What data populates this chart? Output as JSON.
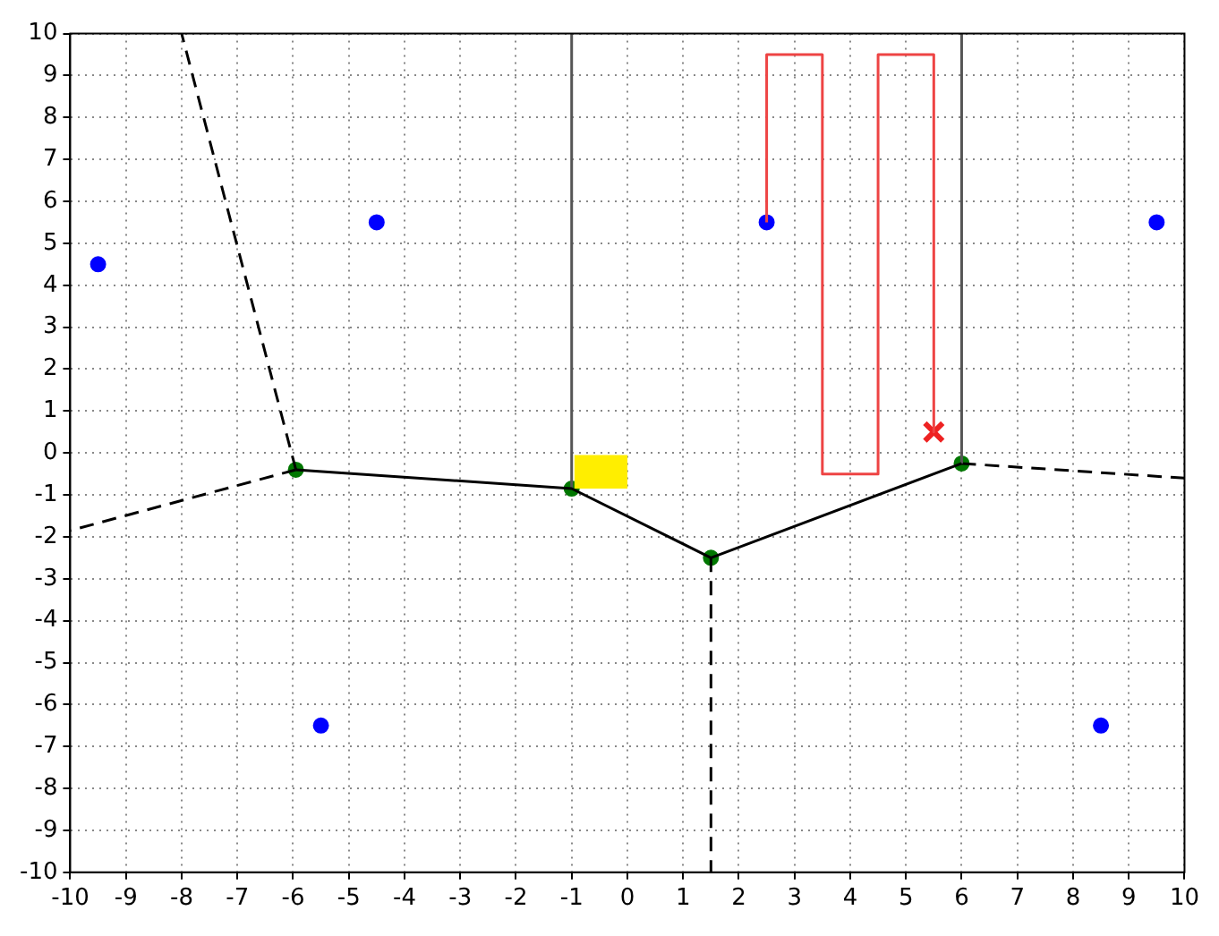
{
  "chart_data": {
    "type": "scatter",
    "xlim": [
      -10,
      10
    ],
    "ylim": [
      -10,
      10
    ],
    "xticks": [
      -10,
      -9,
      -8,
      -7,
      -6,
      -5,
      -4,
      -3,
      -2,
      -1,
      0,
      1,
      2,
      3,
      4,
      5,
      6,
      7,
      8,
      9,
      10
    ],
    "yticks": [
      -10,
      -9,
      -8,
      -7,
      -6,
      -5,
      -4,
      -3,
      -2,
      -1,
      0,
      1,
      2,
      3,
      4,
      5,
      6,
      7,
      8,
      9,
      10
    ],
    "grid": true,
    "legend": false,
    "series": [
      {
        "type": "area",
        "color": "#ffee00",
        "x": [
          -0.95,
          0,
          0,
          -0.95,
          -0.95
        ],
        "values": [
          -0.85,
          -0.85,
          -0.05,
          -0.05,
          -0.85
        ],
        "marker": "none"
      },
      {
        "type": "line",
        "color": "#000000",
        "x": [
          -5.95,
          -1,
          1.5,
          6
        ],
        "values": [
          -0.4,
          -0.85,
          -2.5,
          -0.25
        ],
        "marker": "none",
        "line_style": "solid"
      },
      {
        "type": "line",
        "color": "#555555",
        "x": [
          -1,
          -1
        ],
        "values": [
          -0.85,
          10
        ],
        "marker": "none",
        "line_style": "solid"
      },
      {
        "type": "line",
        "color": "#555555",
        "x": [
          6,
          6
        ],
        "values": [
          -0.25,
          10
        ],
        "marker": "none",
        "line_style": "solid"
      },
      {
        "type": "line",
        "color": "#000000",
        "x": [
          -5.95,
          -8
        ],
        "values": [
          -0.4,
          10
        ],
        "marker": "none",
        "line_style": "dashed"
      },
      {
        "type": "line",
        "color": "#000000",
        "x": [
          -5.95,
          -10
        ],
        "values": [
          -0.4,
          -1.85
        ],
        "marker": "none",
        "line_style": "dashed"
      },
      {
        "type": "line",
        "color": "#000000",
        "x": [
          1.5,
          1.5
        ],
        "values": [
          -2.5,
          -10
        ],
        "marker": "none",
        "line_style": "dashed"
      },
      {
        "type": "line",
        "color": "#000000",
        "x": [
          6,
          10
        ],
        "values": [
          -0.25,
          -0.6
        ],
        "marker": "none",
        "line_style": "dashed"
      },
      {
        "type": "line",
        "color": "#ee4444",
        "x": [
          2.5,
          2.5,
          3.5,
          3.5,
          4.5,
          4.5,
          5.5,
          5.5
        ],
        "values": [
          5.5,
          9.5,
          9.5,
          -0.5,
          -0.5,
          9.5,
          9.5,
          0.5
        ],
        "marker": "none",
        "line_style": "solid"
      },
      {
        "color": "#007700",
        "x": [
          -5.95,
          -1,
          1.5,
          6
        ],
        "values": [
          -0.4,
          -0.85,
          -2.5,
          -0.25
        ],
        "marker": "circle"
      },
      {
        "color": "#0000ff",
        "x": [
          -9.5,
          -4.5,
          2.5,
          9.5,
          -5.5,
          8.5
        ],
        "values": [
          4.5,
          5.5,
          5.5,
          5.5,
          -6.5,
          -6.5
        ],
        "marker": "circle"
      },
      {
        "color": "#ee2222",
        "x": [
          5.5
        ],
        "values": [
          0.5
        ],
        "marker": "cross"
      }
    ]
  }
}
